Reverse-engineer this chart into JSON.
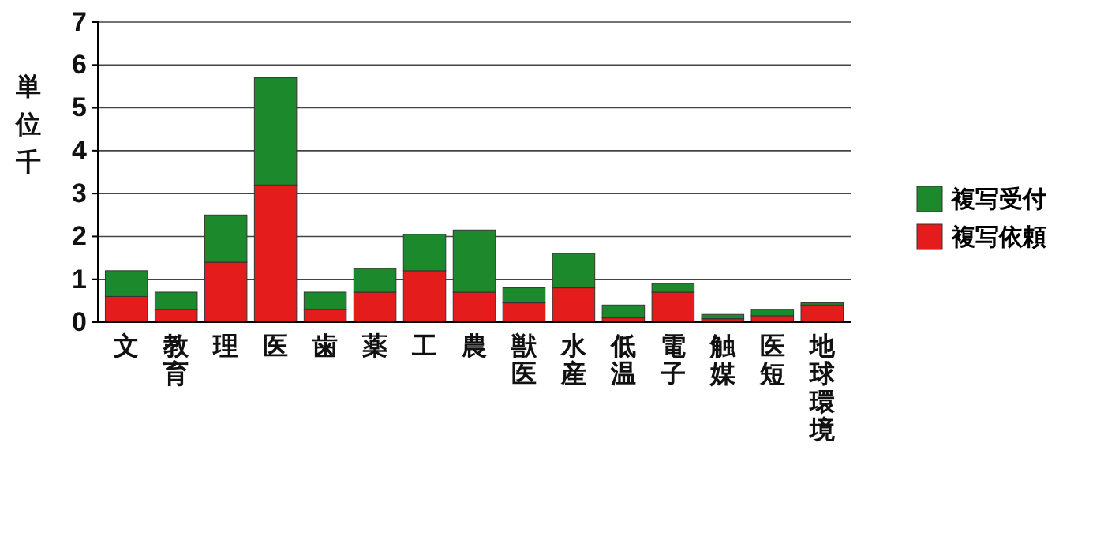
{
  "chart_data": {
    "type": "bar",
    "stacked": true,
    "ylabel": "単位千",
    "categories": [
      "文",
      "教育",
      "理",
      "医",
      "歯",
      "薬",
      "工",
      "農",
      "獣医",
      "水産",
      "低温",
      "電子",
      "触媒",
      "医短",
      "地球環境"
    ],
    "series": [
      {
        "name": "複写依頼",
        "color": "#e41c1c",
        "values": [
          0.6,
          0.3,
          1.4,
          3.2,
          0.3,
          0.7,
          1.2,
          0.7,
          0.45,
          0.8,
          0.1,
          0.7,
          0.08,
          0.15,
          0.4
        ]
      },
      {
        "name": "複写受付",
        "color": "#1c8a2c",
        "values": [
          0.6,
          0.4,
          1.1,
          2.5,
          0.4,
          0.55,
          0.85,
          1.45,
          0.35,
          0.8,
          0.3,
          0.2,
          0.1,
          0.15,
          0.05
        ]
      }
    ],
    "ylim": [
      0,
      7
    ],
    "yticks": [
      0,
      1,
      2,
      3,
      4,
      5,
      6,
      7
    ],
    "grid": "y",
    "legend": "right"
  }
}
